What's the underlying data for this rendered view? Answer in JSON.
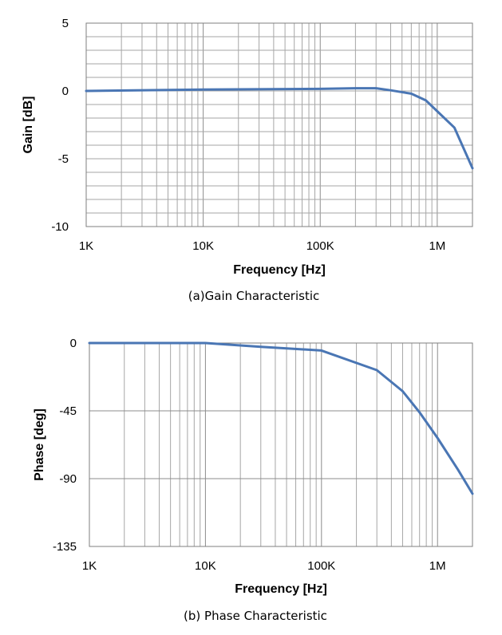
{
  "chart_data": [
    {
      "type": "line",
      "caption": "(a)Gain Characteristic",
      "xlabel": "Frequency [Hz]",
      "ylabel": "Gain [dB]",
      "xscale": "log",
      "xlim": [
        1000,
        2000000
      ],
      "ylim": [
        -10,
        5
      ],
      "xticks": [
        {
          "value": 1000,
          "label": "1K"
        },
        {
          "value": 10000,
          "label": "10K"
        },
        {
          "value": 100000,
          "label": "100K"
        },
        {
          "value": 1000000,
          "label": "1M"
        }
      ],
      "yticks": [
        {
          "value": 5,
          "label": "5"
        },
        {
          "value": 0,
          "label": "0"
        },
        {
          "value": -5,
          "label": "-5"
        },
        {
          "value": -10,
          "label": "-10"
        }
      ],
      "grid": true,
      "color": "#4a76b4",
      "series": [
        {
          "x": [
            1000,
            10000,
            100000,
            200000,
            300000,
            400000,
            600000,
            800000,
            1000000,
            1400000,
            2000000
          ],
          "y": [
            0.0,
            0.1,
            0.15,
            0.2,
            0.2,
            0.05,
            -0.2,
            -0.7,
            -1.5,
            -2.7,
            -5.7
          ]
        }
      ]
    },
    {
      "type": "line",
      "caption": "(b) Phase Characteristic",
      "xlabel": "Frequency [Hz]",
      "ylabel": "Phase [deg]",
      "xscale": "log",
      "xlim": [
        1000,
        2000000
      ],
      "ylim": [
        -135,
        0
      ],
      "xticks": [
        {
          "value": 1000,
          "label": "1K"
        },
        {
          "value": 10000,
          "label": "10K"
        },
        {
          "value": 100000,
          "label": "100K"
        },
        {
          "value": 1000000,
          "label": "1M"
        }
      ],
      "yticks": [
        {
          "value": 0,
          "label": "0"
        },
        {
          "value": -45,
          "label": "-45"
        },
        {
          "value": -90,
          "label": "-90"
        },
        {
          "value": -135,
          "label": "-135"
        }
      ],
      "grid": true,
      "color": "#4a76b4",
      "series": [
        {
          "x": [
            1000,
            10000,
            30000,
            100000,
            300000,
            500000,
            700000,
            1000000,
            1500000,
            2000000
          ],
          "y": [
            0,
            0,
            -2.5,
            -5,
            -18,
            -32,
            -46,
            -63,
            -84,
            -100
          ]
        }
      ]
    }
  ]
}
